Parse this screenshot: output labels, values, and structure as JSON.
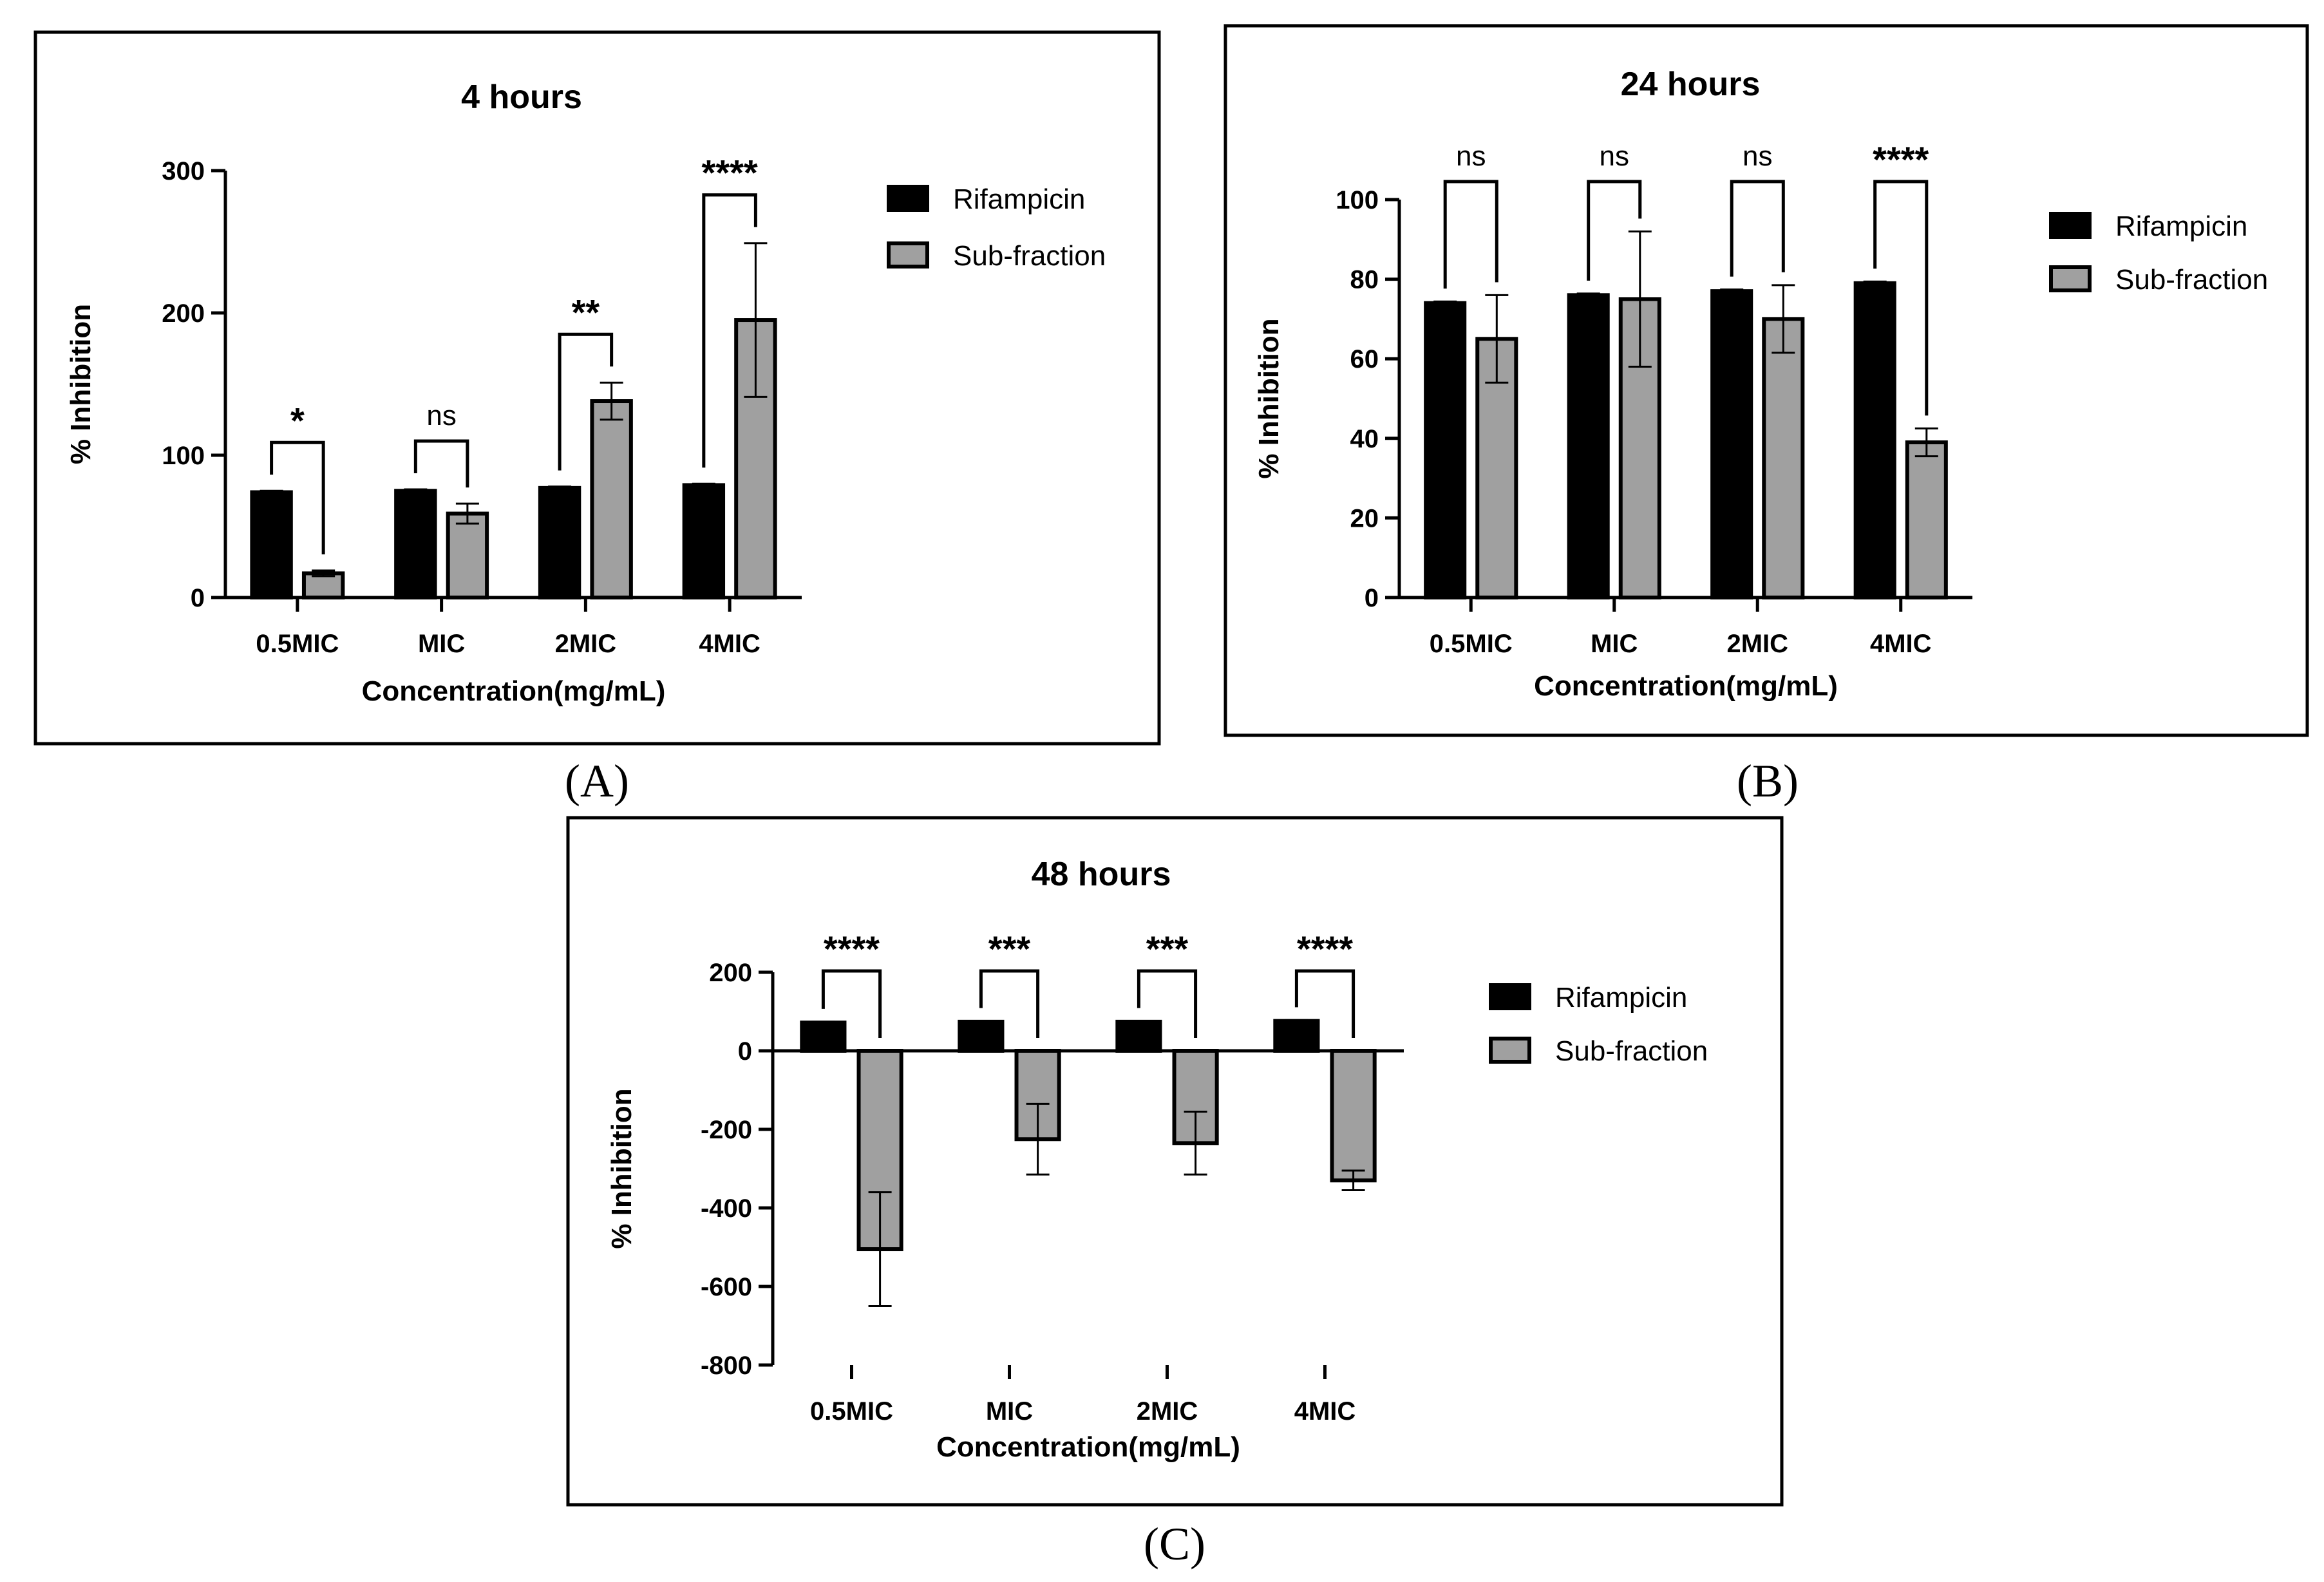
{
  "chart_data": [
    {
      "type": "bar",
      "panel": "(A)",
      "title": "4 hours",
      "xlabel": "Concentration(mg/mL)",
      "ylabel": "% Inhibition",
      "categories": [
        "0.5MIC",
        "MIC",
        "2MIC",
        "4MIC"
      ],
      "ylim": [
        0,
        300
      ],
      "yticks": [
        0,
        100,
        200,
        300
      ],
      "series": [
        {
          "name": "Rifampicin",
          "color": "#000000",
          "values": [
            74,
            75,
            77,
            79
          ],
          "errors": [
            1,
            1,
            1,
            1
          ]
        },
        {
          "name": "Sub-fraction",
          "color": "#a0a0a0",
          "values": [
            17,
            59,
            138,
            195
          ],
          "errors": [
            2,
            7,
            13,
            54
          ]
        }
      ],
      "significance": [
        "*",
        "ns",
        "**",
        "****"
      ]
    },
    {
      "type": "bar",
      "panel": "(B)",
      "title": "24 hours",
      "xlabel": "Concentration(mg/mL)",
      "ylabel": "% Inhibition",
      "categories": [
        "0.5MIC",
        "MIC",
        "2MIC",
        "4MIC"
      ],
      "ylim": [
        0,
        100
      ],
      "yticks": [
        0,
        20,
        40,
        60,
        80,
        100
      ],
      "series": [
        {
          "name": "Rifampicin",
          "color": "#000000",
          "values": [
            74,
            76,
            77,
            79
          ],
          "errors": [
            0.4,
            0.4,
            0.4,
            0.4
          ]
        },
        {
          "name": "Sub-fraction",
          "color": "#a0a0a0",
          "values": [
            65,
            75,
            70,
            39
          ],
          "errors": [
            11,
            17,
            8.5,
            3.5
          ]
        }
      ],
      "significance": [
        "ns",
        "ns",
        "ns",
        "****"
      ]
    },
    {
      "type": "bar",
      "panel": "(C)",
      "title": "48 hours",
      "xlabel": "Concentration(mg/mL)",
      "ylabel": "% Inhibition",
      "categories": [
        "0.5MIC",
        "MIC",
        "2MIC",
        "4MIC"
      ],
      "ylim": [
        -800,
        200
      ],
      "yticks": [
        -800,
        -600,
        -400,
        -200,
        0,
        200
      ],
      "series": [
        {
          "name": "Rifampicin",
          "color": "#000000",
          "values": [
            72,
            74,
            74,
            76
          ],
          "errors": [
            2,
            2,
            2,
            2
          ]
        },
        {
          "name": "Sub-fraction",
          "color": "#a0a0a0",
          "values": [
            -505,
            -225,
            -235,
            -330
          ],
          "errors": [
            145,
            90,
            80,
            25
          ]
        }
      ],
      "significance": [
        "****",
        "***",
        "***",
        "****"
      ]
    }
  ]
}
